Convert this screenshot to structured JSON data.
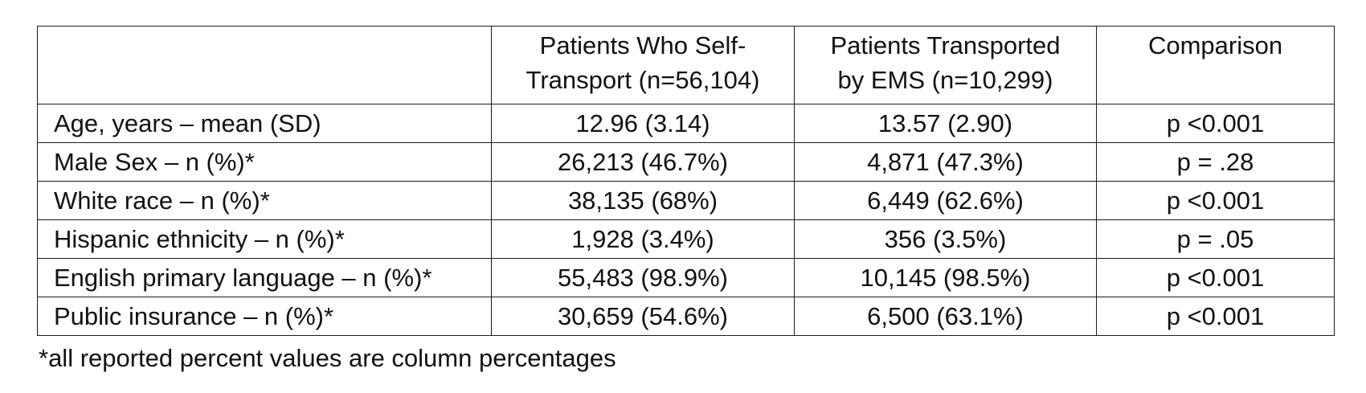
{
  "table": {
    "headers": [
      "",
      "Patients Who Self-Transport (n=56,104)",
      "Patients Transported by EMS (n=10,299)",
      "Comparison"
    ],
    "header_lines": {
      "self_transport": [
        "Patients Who Self-",
        "Transport (n=56,104)"
      ],
      "ems": [
        "Patients Transported",
        "by EMS (n=10,299)"
      ],
      "comparison": "Comparison"
    },
    "rows": [
      [
        "Age, years – mean (SD)",
        "12.96 (3.14)",
        "13.57 (2.90)",
        "p <0.001"
      ],
      [
        "Male Sex – n (%)*",
        "26,213 (46.7%)",
        "4,871 (47.3%)",
        "p = .28"
      ],
      [
        "White race – n (%)*",
        "38,135 (68%)",
        "6,449 (62.6%)",
        "p <0.001"
      ],
      [
        "Hispanic ethnicity – n (%)*",
        "1,928 (3.4%)",
        "356 (3.5%)",
        "p = .05"
      ],
      [
        "English primary language – n (%)*",
        "55,483 (98.9%)",
        "10,145 (98.5%)",
        "p <0.001"
      ],
      [
        "Public insurance – n (%)*",
        "30,659 (54.6%)",
        "6,500 (63.1%)",
        "p <0.001"
      ]
    ]
  },
  "footnote": "*all reported percent values are column percentages"
}
